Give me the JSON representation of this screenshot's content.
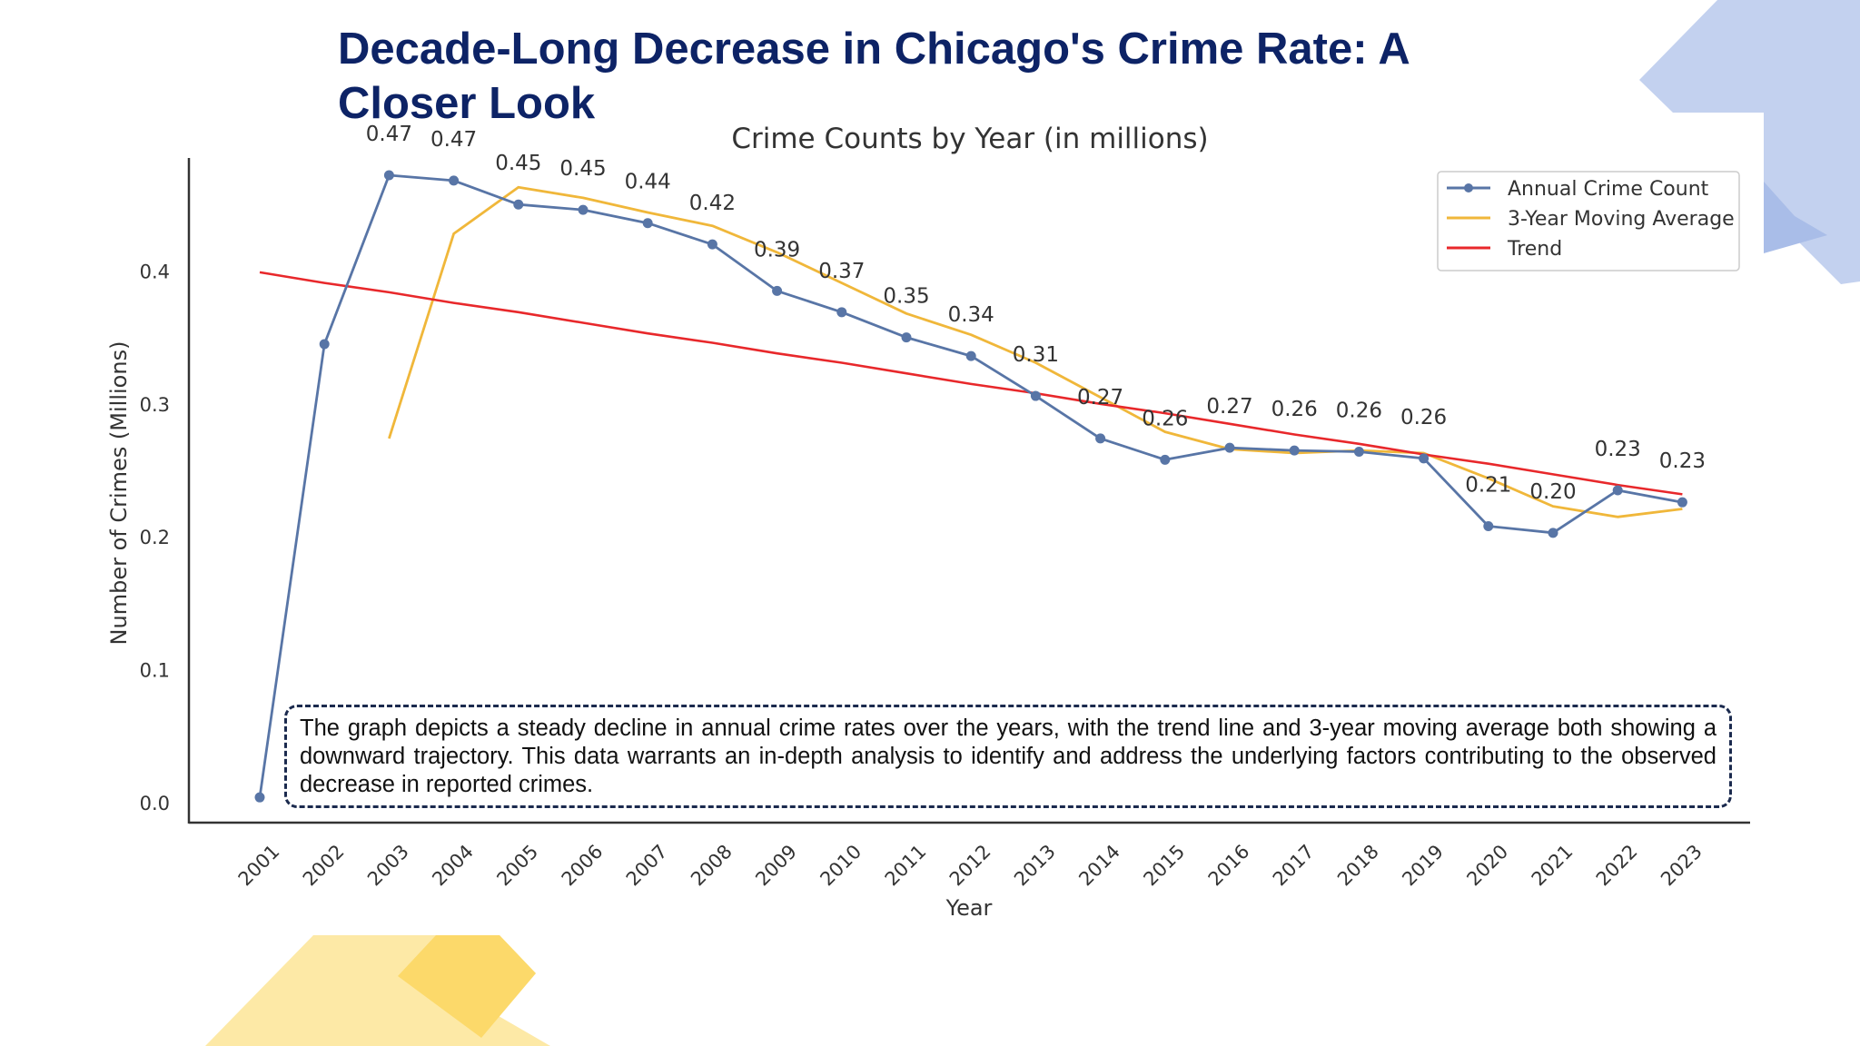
{
  "slide": {
    "title": "Decade-Long Decrease in Chicago's Crime Rate: A Closer Look",
    "caption": "The graph depicts a steady decline in annual crime rates over the years, with the trend line and 3-year moving average both showing a downward trajectory. This data warrants an in-depth analysis to identify and address the underlying factors contributing to the observed decrease in reported crimes.",
    "decoration_colors": {
      "blue": "#c3d1ef",
      "blue_dark": "#a9bde8",
      "yellow": "#fde9a6",
      "yellow_dark": "#fcd96a"
    }
  },
  "chart_data": {
    "type": "line",
    "title": "Crime Counts by Year (in millions)",
    "xlabel": "Year",
    "ylabel": "Number of Crimes (Millions)",
    "x": [
      "2001",
      "2002",
      "2003",
      "2004",
      "2005",
      "2006",
      "2007",
      "2008",
      "2009",
      "2010",
      "2011",
      "2012",
      "2013",
      "2014",
      "2015",
      "2016",
      "2017",
      "2018",
      "2019",
      "2020",
      "2021",
      "2022",
      "2023"
    ],
    "ylim": [
      -0.015,
      0.485
    ],
    "yticks": [
      0.0,
      0.1,
      0.2,
      0.3,
      0.4
    ],
    "ytick_labels": [
      "0.0",
      "0.1",
      "0.2",
      "0.3",
      "0.4"
    ],
    "grid": false,
    "legend_position": "top-right",
    "series": [
      {
        "name": "Annual Crime Count",
        "color": "#5875a6",
        "marker": "circle",
        "values": [
          0.004,
          0.345,
          0.472,
          0.468,
          0.45,
          0.446,
          0.436,
          0.42,
          0.385,
          0.369,
          0.35,
          0.336,
          0.306,
          0.274,
          0.258,
          0.267,
          0.265,
          0.264,
          0.259,
          0.208,
          0.203,
          0.235,
          0.226
        ],
        "data_labels": [
          "",
          "",
          "0.47",
          "0.47",
          "0.45",
          "0.45",
          "0.44",
          "0.42",
          "0.39",
          "0.37",
          "0.35",
          "0.34",
          "0.31",
          "0.27",
          "0.26",
          "0.27",
          "0.26",
          "0.26",
          "0.26",
          "0.21",
          "0.20",
          "0.23",
          "0.23"
        ]
      },
      {
        "name": "3-Year Moving Average",
        "color": "#f0b73a",
        "values": [
          null,
          null,
          0.274,
          0.428,
          0.463,
          0.455,
          0.444,
          0.434,
          0.414,
          0.391,
          0.368,
          0.352,
          0.331,
          0.305,
          0.279,
          0.266,
          0.263,
          0.265,
          0.263,
          0.244,
          0.223,
          0.215,
          0.221
        ]
      },
      {
        "name": "Trend",
        "color": "#e8282b",
        "values": [
          0.399,
          0.391,
          0.384,
          0.376,
          0.369,
          0.361,
          0.353,
          0.346,
          0.338,
          0.331,
          0.323,
          0.315,
          0.308,
          0.3,
          0.293,
          0.285,
          0.277,
          0.27,
          0.262,
          0.255,
          0.247,
          0.239,
          0.232
        ]
      }
    ]
  }
}
